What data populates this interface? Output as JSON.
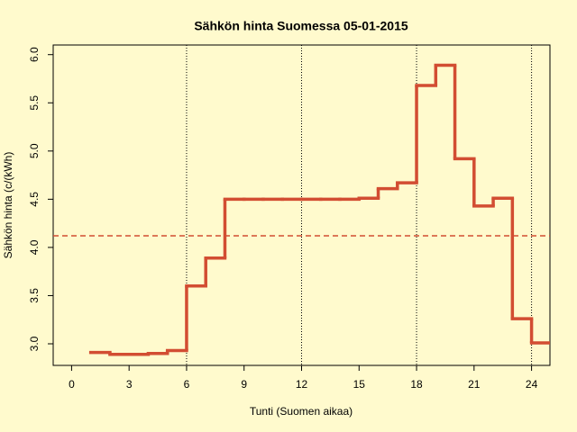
{
  "chart_data": {
    "type": "step",
    "title": "Sähkön hinta Suomessa 05-01-2015",
    "xlabel": "Tunti (Suomen aikaa)",
    "ylabel": "Sähkön hinta (c/(kWh)",
    "x": [
      1,
      2,
      3,
      4,
      5,
      6,
      7,
      8,
      9,
      10,
      11,
      12,
      13,
      14,
      15,
      16,
      17,
      18,
      19,
      20,
      21,
      22,
      23,
      24
    ],
    "values": [
      2.91,
      2.89,
      2.89,
      2.9,
      2.93,
      3.6,
      3.89,
      4.5,
      4.5,
      4.5,
      4.5,
      4.5,
      4.5,
      4.5,
      4.51,
      4.61,
      4.67,
      5.68,
      5.89,
      4.92,
      4.43,
      4.51,
      3.26,
      3.01
    ],
    "color": "#d24d32",
    "mean_line": 4.12,
    "vlines": [
      6,
      12,
      18,
      24
    ],
    "xlim": [
      -0.96,
      24.96
    ],
    "ylim": [
      2.776,
      6.1
    ],
    "xticks": [
      0,
      3,
      6,
      9,
      12,
      15,
      18,
      21,
      24
    ],
    "yticks": [
      {
        "value": 3,
        "label": "3.0"
      },
      {
        "value": 3.5,
        "label": "3.5"
      },
      {
        "value": 4,
        "label": "4.0"
      },
      {
        "value": 4.5,
        "label": "4.5"
      },
      {
        "value": 5,
        "label": "5.0"
      },
      {
        "value": 5.5,
        "label": "5.5"
      },
      {
        "value": 6,
        "label": "6.0"
      }
    ]
  }
}
